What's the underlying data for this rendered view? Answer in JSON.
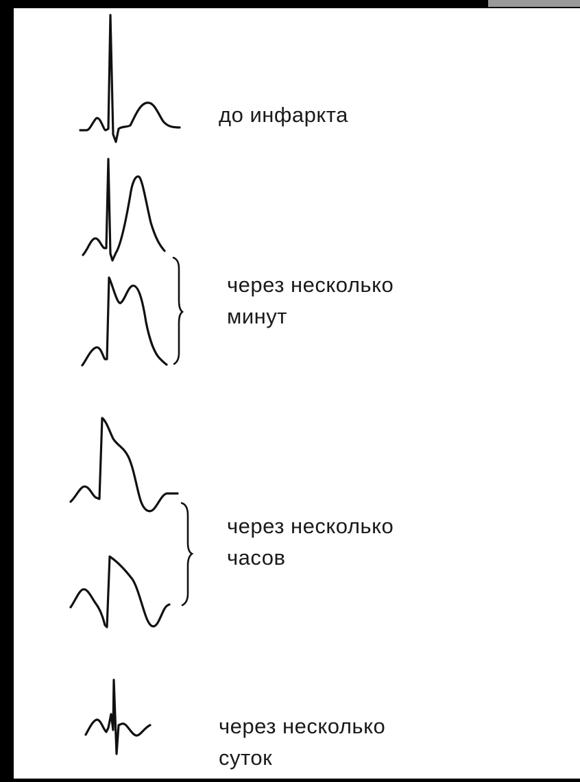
{
  "stages": [
    {
      "id": "before",
      "label_lines": [
        "до инфаркта"
      ]
    },
    {
      "id": "minutes",
      "label_lines": [
        "через несколько",
        "минут"
      ]
    },
    {
      "id": "hours",
      "label_lines": [
        "через несколько",
        "часов"
      ]
    },
    {
      "id": "days",
      "label_lines": [
        "через несколько",
        "суток"
      ]
    }
  ],
  "colors": {
    "ink": "#111111",
    "paper": "#ffffff",
    "frame": "#000000"
  }
}
